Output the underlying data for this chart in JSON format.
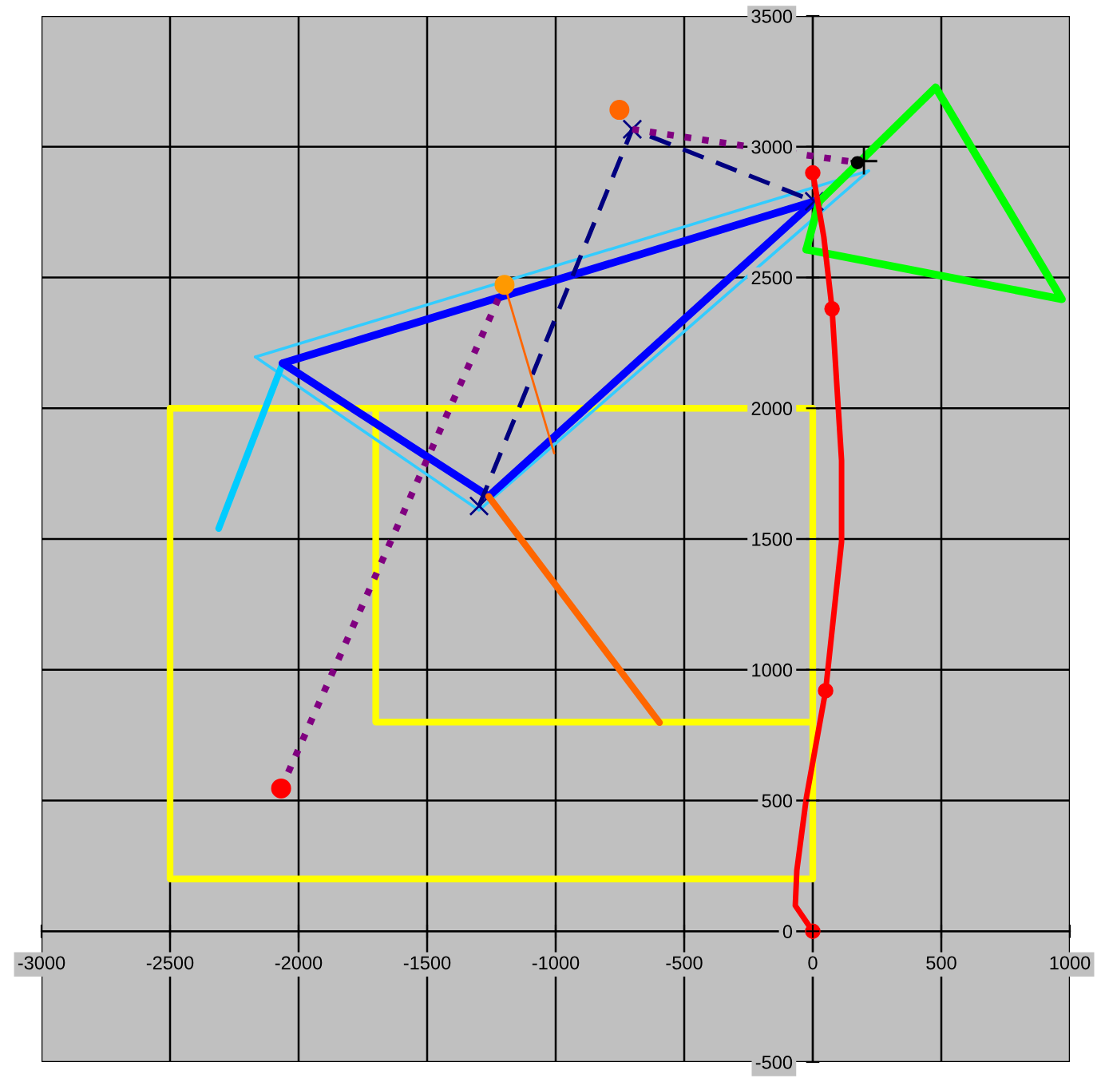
{
  "chart_data": {
    "type": "line",
    "xlim": [
      -3000,
      1000
    ],
    "ylim": [
      -500,
      3500
    ],
    "xticks": [
      -3000,
      -2500,
      -2000,
      -1500,
      -1000,
      -500,
      0,
      500,
      1000
    ],
    "yticks": [
      -500,
      0,
      500,
      1000,
      1500,
      2000,
      2500,
      3000,
      3500
    ],
    "grid": true,
    "legend": false,
    "series": [
      {
        "color": "#ffff00",
        "marker": "none",
        "line_style": "solid",
        "x": [
          -1700,
          -1700,
          0,
          0,
          -2500,
          -2500,
          0,
          0
        ],
        "values": [
          2000,
          800,
          800,
          2000,
          2000,
          200,
          200,
          800
        ]
      },
      {
        "color": "#33ccff",
        "marker": "none",
        "line_style": "solid",
        "x": [
          -2168,
          -1298,
          217
        ],
        "values": [
          2196,
          1610,
          2908
        ]
      },
      {
        "color": "#33ccff",
        "marker": "none",
        "line_style": "solid",
        "x": [
          217,
          -2168
        ],
        "values": [
          2908,
          2196
        ]
      },
      {
        "color": "#00ccff",
        "marker": "none",
        "line_style": "solid",
        "x": [
          -2311,
          -2062
        ],
        "values": [
          1540,
          2172
        ]
      },
      {
        "color": "#0000ff",
        "marker": "none",
        "line_style": "solid",
        "x": [
          -2062,
          -1261,
          6
        ],
        "values": [
          2172,
          1663,
          2791
        ]
      },
      {
        "color": "#0000ff",
        "marker": "none",
        "line_style": "solid",
        "x": [
          6,
          -2062
        ],
        "values": [
          2791,
          2172
        ]
      },
      {
        "color": "#000080",
        "marker": "cross",
        "line_style": "dashed",
        "x": [
          -1298,
          -702,
          6
        ],
        "values": [
          1626,
          3067,
          2791
        ]
      },
      {
        "color": "#ff6600",
        "marker": "none",
        "line_style": "solid",
        "x": [
          -1261,
          -596
        ],
        "values": [
          1663,
          798
        ]
      },
      {
        "color": "#ff6600",
        "marker": "none",
        "line_style": "solid",
        "x": [
          -1199,
          -1006
        ],
        "values": [
          2472,
          1828
        ]
      },
      {
        "type": "scatter",
        "color": "#ff6600",
        "marker": "circle",
        "x": [
          -752
        ],
        "values": [
          3141
        ]
      },
      {
        "color": "#800080",
        "marker": "none",
        "line_style": "dotted",
        "x": [
          -2068,
          -1199
        ],
        "values": [
          546,
          2472
        ]
      },
      {
        "color": "#800080",
        "marker": "none",
        "line_style": "dotted",
        "x": [
          -702,
          174
        ],
        "values": [
          3067,
          2939
        ]
      },
      {
        "type": "scatter",
        "color": "#ff0000",
        "marker": "circle",
        "x": [
          -2068
        ],
        "values": [
          546
        ]
      },
      {
        "type": "scatter",
        "color": "#ff9900",
        "marker": "circle",
        "x": [
          -1199
        ],
        "values": [
          2472
        ]
      },
      {
        "type": "scatter",
        "color": "#000000",
        "marker": "circle",
        "x": [
          174
        ],
        "values": [
          2939
        ]
      },
      {
        "type": "scatter",
        "color": "#000000",
        "marker": "plus",
        "x": [
          199
        ],
        "values": [
          2945
        ]
      },
      {
        "color": "#00ff00",
        "marker": "none",
        "line_style": "solid",
        "x": [
          25,
          478,
          969,
          -25
        ],
        "values": [
          2791,
          3227,
          2417,
          2607
        ]
      },
      {
        "color": "#00ff00",
        "marker": "none",
        "line_style": "solid",
        "x": [
          -25,
          25
        ],
        "values": [
          2607,
          2791
        ]
      },
      {
        "color": "#ff0000",
        "marker": "none",
        "line_style": "solid",
        "x": [
          0,
          -68,
          -62,
          -25,
          50,
          112,
          112,
          75,
          43,
          0
        ],
        "values": [
          0,
          98,
          233,
          510,
          920,
          1490,
          1800,
          2380,
          2655,
          2900
        ]
      },
      {
        "type": "scatter",
        "color": "#ff0000",
        "marker": "circle",
        "x": [
          0,
          50,
          75,
          0
        ],
        "values": [
          0,
          920,
          2380,
          2900
        ]
      }
    ]
  }
}
